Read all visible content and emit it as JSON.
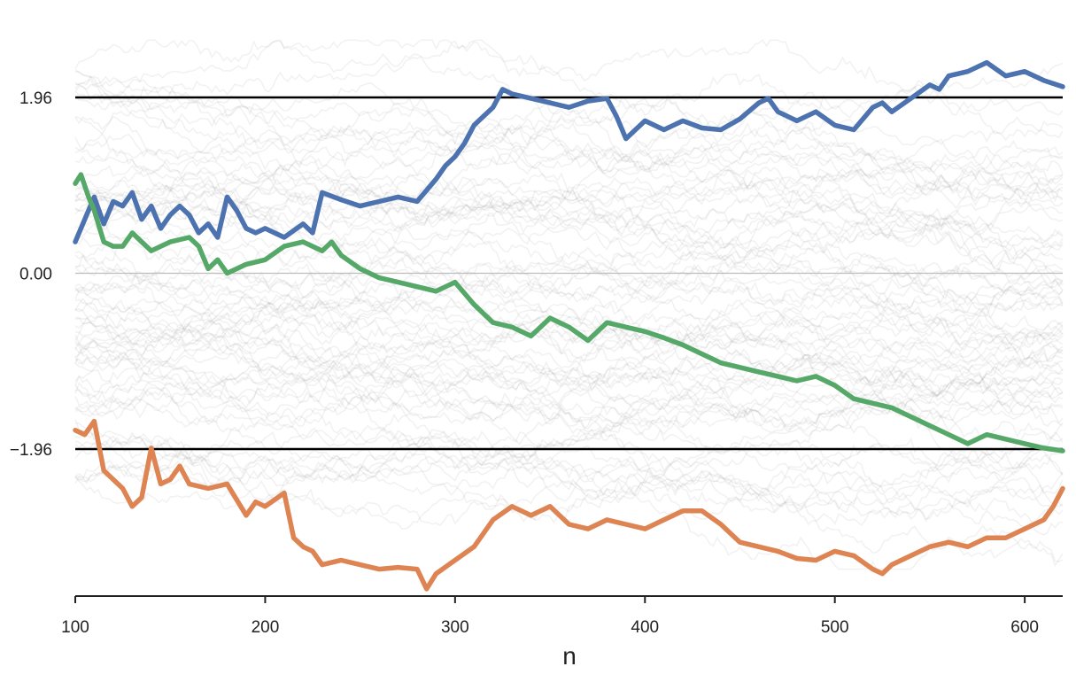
{
  "chart_data": {
    "type": "line",
    "title": "",
    "xlabel": "n",
    "ylabel": "",
    "xlim": [
      100,
      620
    ],
    "ylim": [
      -3.6,
      2.8
    ],
    "grid": false,
    "legend": "none",
    "x_ticks": [
      100,
      200,
      300,
      400,
      500,
      600
    ],
    "x_tick_labels": [
      "100",
      "200",
      "300",
      "400",
      "500",
      "600"
    ],
    "y_ticks": [
      1.96,
      0.0,
      -1.96
    ],
    "y_tick_labels": [
      "1.96",
      "0.00",
      "−1.96"
    ],
    "reference_lines": [
      {
        "y": 1.96,
        "color": "#000000"
      },
      {
        "y": -1.96,
        "color": "#000000"
      },
      {
        "y": 0.0,
        "color": "#bdbdbd"
      }
    ],
    "background_paths": {
      "count": 80,
      "color": "#9e9e9e",
      "opacity": 0.13,
      "start_range": [
        -2.3,
        2.4
      ]
    },
    "series": [
      {
        "color": "#4c72b0",
        "x": [
          100,
          105,
          110,
          115,
          120,
          125,
          130,
          135,
          140,
          145,
          150,
          155,
          160,
          165,
          170,
          175,
          180,
          185,
          190,
          195,
          200,
          210,
          220,
          225,
          230,
          240,
          250,
          260,
          270,
          280,
          290,
          295,
          300,
          305,
          310,
          315,
          320,
          325,
          330,
          340,
          350,
          360,
          370,
          380,
          385,
          390,
          395,
          400,
          410,
          420,
          430,
          440,
          450,
          460,
          465,
          470,
          480,
          490,
          500,
          510,
          520,
          525,
          530,
          540,
          550,
          555,
          560,
          570,
          580,
          590,
          600,
          610,
          620
        ],
        "values": [
          0.35,
          0.6,
          0.85,
          0.55,
          0.8,
          0.75,
          0.9,
          0.6,
          0.75,
          0.5,
          0.65,
          0.75,
          0.65,
          0.45,
          0.55,
          0.4,
          0.85,
          0.7,
          0.5,
          0.45,
          0.5,
          0.4,
          0.55,
          0.45,
          0.9,
          0.82,
          0.75,
          0.8,
          0.85,
          0.8,
          1.05,
          1.2,
          1.3,
          1.45,
          1.65,
          1.75,
          1.85,
          2.05,
          2.0,
          1.95,
          1.9,
          1.85,
          1.92,
          1.95,
          1.75,
          1.5,
          1.6,
          1.7,
          1.6,
          1.7,
          1.62,
          1.6,
          1.72,
          1.9,
          1.95,
          1.8,
          1.7,
          1.8,
          1.65,
          1.6,
          1.85,
          1.9,
          1.8,
          1.95,
          2.1,
          2.05,
          2.2,
          2.25,
          2.35,
          2.2,
          2.25,
          2.15,
          2.08
        ]
      },
      {
        "color": "#55a868",
        "x": [
          100,
          103,
          107,
          110,
          115,
          120,
          125,
          130,
          135,
          140,
          145,
          150,
          160,
          165,
          170,
          175,
          180,
          190,
          200,
          210,
          220,
          230,
          235,
          240,
          250,
          260,
          270,
          280,
          290,
          300,
          310,
          320,
          330,
          340,
          350,
          360,
          370,
          380,
          390,
          400,
          410,
          420,
          430,
          440,
          450,
          460,
          470,
          480,
          490,
          500,
          510,
          520,
          530,
          540,
          550,
          560,
          570,
          580,
          590,
          600,
          610,
          620
        ],
        "values": [
          1.0,
          1.1,
          0.85,
          0.7,
          0.35,
          0.3,
          0.3,
          0.45,
          0.35,
          0.25,
          0.3,
          0.35,
          0.4,
          0.3,
          0.05,
          0.15,
          0.0,
          0.1,
          0.15,
          0.3,
          0.35,
          0.25,
          0.35,
          0.2,
          0.05,
          -0.05,
          -0.1,
          -0.15,
          -0.2,
          -0.1,
          -0.35,
          -0.55,
          -0.6,
          -0.7,
          -0.5,
          -0.6,
          -0.75,
          -0.55,
          -0.6,
          -0.65,
          -0.72,
          -0.8,
          -0.9,
          -1.0,
          -1.05,
          -1.1,
          -1.15,
          -1.2,
          -1.15,
          -1.25,
          -1.4,
          -1.45,
          -1.5,
          -1.6,
          -1.7,
          -1.8,
          -1.9,
          -1.8,
          -1.85,
          -1.9,
          -1.95,
          -1.98
        ]
      },
      {
        "color": "#dd8452",
        "x": [
          100,
          105,
          110,
          115,
          120,
          125,
          130,
          135,
          140,
          145,
          150,
          155,
          160,
          170,
          180,
          190,
          195,
          200,
          210,
          215,
          220,
          225,
          230,
          240,
          250,
          260,
          270,
          280,
          285,
          290,
          300,
          310,
          320,
          330,
          340,
          350,
          360,
          370,
          380,
          390,
          400,
          410,
          420,
          430,
          440,
          450,
          460,
          470,
          480,
          490,
          500,
          510,
          520,
          525,
          530,
          540,
          550,
          560,
          570,
          580,
          590,
          600,
          610,
          615,
          620
        ],
        "values": [
          -1.75,
          -1.8,
          -1.65,
          -2.2,
          -2.3,
          -2.4,
          -2.6,
          -2.5,
          -1.95,
          -2.35,
          -2.3,
          -2.15,
          -2.35,
          -2.4,
          -2.35,
          -2.7,
          -2.55,
          -2.6,
          -2.45,
          -2.95,
          -3.05,
          -3.1,
          -3.25,
          -3.2,
          -3.25,
          -3.3,
          -3.28,
          -3.3,
          -3.52,
          -3.35,
          -3.2,
          -3.05,
          -2.75,
          -2.6,
          -2.7,
          -2.6,
          -2.8,
          -2.85,
          -2.75,
          -2.8,
          -2.85,
          -2.75,
          -2.65,
          -2.65,
          -2.8,
          -3.0,
          -3.05,
          -3.1,
          -3.18,
          -3.2,
          -3.1,
          -3.15,
          -3.3,
          -3.35,
          -3.25,
          -3.15,
          -3.05,
          -3.0,
          -3.05,
          -2.95,
          -2.95,
          -2.85,
          -2.75,
          -2.6,
          -2.4
        ]
      }
    ]
  }
}
